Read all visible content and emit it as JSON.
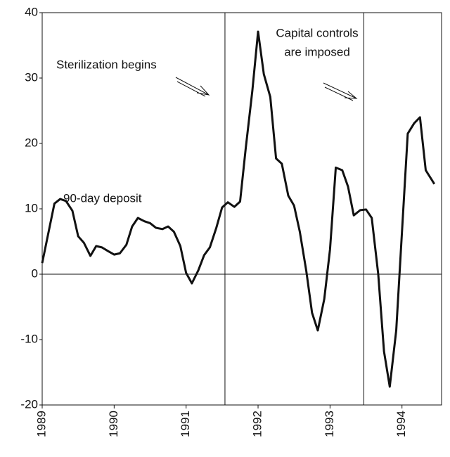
{
  "chart_data": {
    "type": "line",
    "annotations": [
      "Sterilization begins",
      "Capital controls",
      "are imposed",
      "90-day deposit"
    ],
    "x": [
      1989.0,
      1989.17,
      1989.25,
      1989.33,
      1989.42,
      1989.5,
      1989.58,
      1989.67,
      1989.75,
      1989.83,
      1989.92,
      1990.0,
      1990.08,
      1990.17,
      1990.25,
      1990.33,
      1990.42,
      1990.5,
      1990.58,
      1990.67,
      1990.75,
      1990.83,
      1990.92,
      1991.0,
      1991.08,
      1991.17,
      1991.25,
      1991.33,
      1991.42,
      1991.5,
      1991.58,
      1991.67,
      1991.75,
      1991.83,
      1991.92,
      1992.0,
      1992.08,
      1992.17,
      1992.25,
      1992.33,
      1992.42,
      1992.5,
      1992.58,
      1992.67,
      1992.75,
      1992.83,
      1992.92,
      1993.0,
      1993.08,
      1993.17,
      1993.25,
      1993.33,
      1993.42,
      1993.5,
      1993.58,
      1993.67,
      1993.75,
      1993.83,
      1993.92,
      1994.0,
      1994.08,
      1994.17,
      1994.25,
      1994.33,
      1994.45
    ],
    "series": [
      {
        "color": "#111111",
        "values": [
          1.7,
          10.8,
          11.5,
          11.2,
          9.7,
          5.8,
          4.8,
          2.8,
          4.3,
          4.1,
          3.5,
          3.0,
          3.2,
          4.5,
          7.3,
          8.6,
          8.1,
          7.8,
          7.1,
          6.9,
          7.3,
          6.5,
          4.3,
          0.2,
          -1.4,
          0.6,
          2.9,
          4.1,
          7.1,
          10.2,
          11.0,
          10.3,
          11.1,
          19.4,
          28.0,
          37.1,
          30.6,
          27.1,
          17.7,
          16.9,
          12.0,
          10.5,
          6.5,
          0.5,
          -5.9,
          -8.6,
          -3.8,
          3.8,
          16.3,
          15.9,
          13.4,
          9.0,
          9.8,
          9.9,
          8.6,
          0,
          -11.8,
          -17.2,
          -8.6,
          6.5,
          21.5,
          23.1,
          24.0,
          15.9,
          13.8
        ]
      }
    ],
    "vlines": [
      1991.54,
      1993.47
    ],
    "xlim": [
      1989,
      1994.55
    ],
    "xticks": [
      1989,
      1990,
      1991,
      1992,
      1993,
      1994
    ],
    "ylim": [
      -20,
      40
    ],
    "yticks": [
      -20,
      -10,
      0,
      10,
      20,
      30,
      40
    ]
  }
}
